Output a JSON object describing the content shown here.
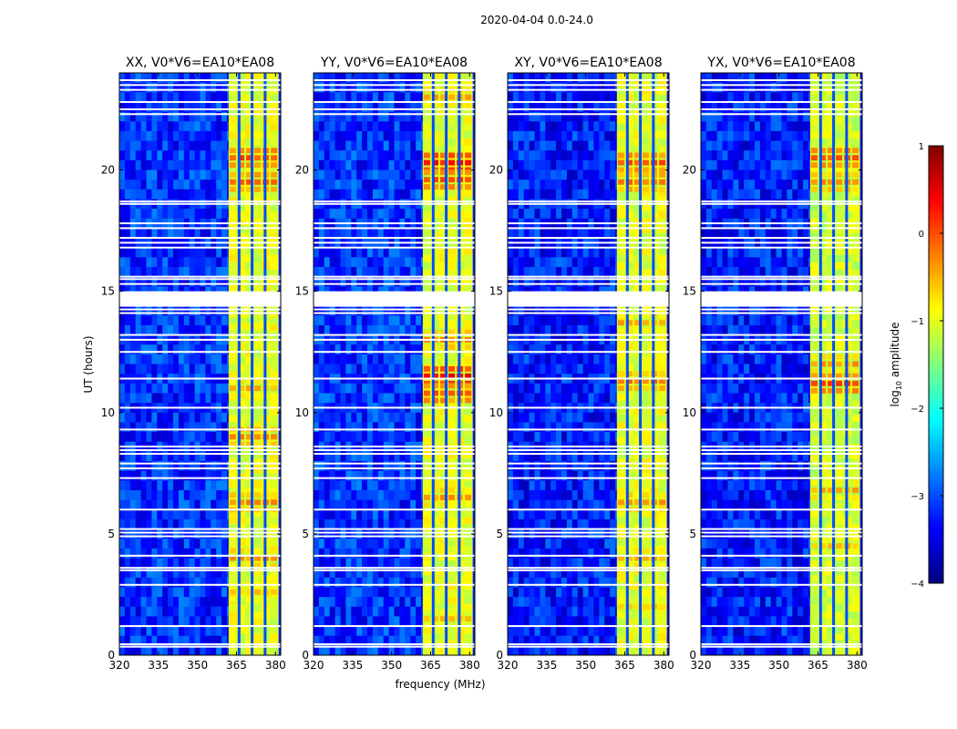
{
  "chart_data": {
    "type": "heatmap",
    "suptitle": "2020-04-04 0.0-24.0",
    "xlabel": "frequency (MHz)",
    "ylabel": "UT (hours)",
    "xlim": [
      320,
      382
    ],
    "ylim": [
      0,
      24
    ],
    "xticks": [
      320,
      335,
      350,
      365,
      380
    ],
    "yticks": [
      0,
      5,
      10,
      15,
      20
    ],
    "xtick_labels": [
      "320",
      "335",
      "350",
      "365",
      "380"
    ],
    "ytick_labels": [
      "0",
      "5",
      "10",
      "15",
      "20"
    ],
    "colorbar": {
      "label_prefix": "log",
      "label_sub": "10",
      "label_suffix": " amplitude",
      "range": [
        -4,
        1
      ],
      "ticks": [
        1,
        0,
        -1,
        -2,
        -3,
        -4
      ],
      "tick_labels": [
        "1",
        "0",
        "−1",
        "−2",
        "−3",
        "−4"
      ],
      "colormap": [
        "#00007f",
        "#0000ff",
        "#007fff",
        "#00ffff",
        "#7fff7f",
        "#ffff00",
        "#ff7f00",
        "#ff0000",
        "#7f0000"
      ]
    },
    "signal_band_mhz": [
      362,
      381
    ],
    "channel_gaps_mhz": [
      366,
      371,
      376
    ],
    "flagged_hours": [
      0.35,
      0.45,
      1.2,
      2.9,
      3.5,
      3.6,
      4.1,
      4.9,
      5.05,
      5.2,
      6.0,
      7.3,
      7.7,
      7.9,
      8.3,
      8.45,
      8.6,
      9.3,
      10.2,
      11.4,
      12.5,
      13.0,
      13.2,
      14.1,
      14.25,
      14.4,
      14.5,
      14.6,
      14.7,
      14.8,
      14.9,
      15.3,
      15.5,
      15.6,
      16.8,
      17.0,
      17.2,
      17.6,
      17.8,
      18.6,
      18.7,
      22.3,
      22.5,
      22.8,
      23.3,
      23.5,
      23.7
    ],
    "panels": [
      {
        "title": "XX, V0*V6=EA10*EA08",
        "background_level": -3.2,
        "band_level": -1.0,
        "hotspots": [
          {
            "hour": 20.5,
            "level": 0.0
          },
          {
            "hour": 19.5,
            "level": -0.1
          },
          {
            "hour": 13.5,
            "level": -0.8
          },
          {
            "hour": 11.0,
            "level": -0.5
          },
          {
            "hour": 9.0,
            "level": -0.3
          },
          {
            "hour": 6.3,
            "level": -0.3
          },
          {
            "hour": 4.0,
            "level": -0.4
          },
          {
            "hour": 2.6,
            "level": -0.6
          }
        ]
      },
      {
        "title": "YY, V0*V6=EA10*EA08",
        "background_level": -3.2,
        "band_level": -1.0,
        "hotspots": [
          {
            "hour": 23.0,
            "level": -0.4
          },
          {
            "hour": 20.3,
            "level": 0.3
          },
          {
            "hour": 19.6,
            "level": 0.0
          },
          {
            "hour": 13.0,
            "level": -0.3
          },
          {
            "hour": 11.5,
            "level": 0.4
          },
          {
            "hour": 10.8,
            "level": 0.0
          },
          {
            "hour": 6.5,
            "level": -0.4
          },
          {
            "hour": 1.5,
            "level": -0.6
          }
        ]
      },
      {
        "title": "XY, V0*V6=EA10*EA08",
        "background_level": -3.3,
        "band_level": -1.0,
        "hotspots": [
          {
            "hour": 20.3,
            "level": 0.0
          },
          {
            "hour": 19.5,
            "level": -0.2
          },
          {
            "hour": 13.7,
            "level": -0.5
          },
          {
            "hour": 11.3,
            "level": -0.2
          },
          {
            "hour": 6.3,
            "level": -0.4
          },
          {
            "hour": 4.0,
            "level": -0.5
          },
          {
            "hour": 2.0,
            "level": -0.7
          }
        ]
      },
      {
        "title": "YX, V0*V6=EA10*EA08",
        "background_level": -3.3,
        "band_level": -1.1,
        "hotspots": [
          {
            "hour": 20.5,
            "level": 0.0
          },
          {
            "hour": 19.5,
            "level": -0.3
          },
          {
            "hour": 12.0,
            "level": -0.4
          },
          {
            "hour": 11.2,
            "level": 0.0
          },
          {
            "hour": 6.8,
            "level": -0.5
          },
          {
            "hour": 4.5,
            "level": -0.6
          }
        ]
      }
    ]
  }
}
